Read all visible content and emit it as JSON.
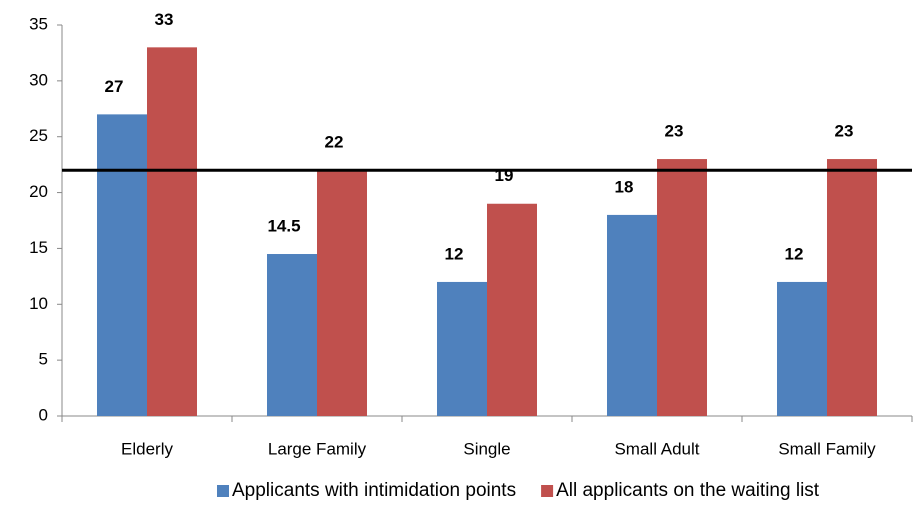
{
  "chart_data": {
    "type": "bar",
    "categories": [
      "Elderly",
      "Large Family",
      "Single",
      "Small Adult",
      "Small Family"
    ],
    "series": [
      {
        "name": "Applicants with intimidation points",
        "color": "#4f81bd",
        "values": [
          27,
          14.5,
          12,
          18,
          12
        ]
      },
      {
        "name": "All applicants on the waiting list",
        "color": "#c0504d",
        "values": [
          33,
          22,
          19,
          23,
          23
        ]
      }
    ],
    "reference_line": 22,
    "ylim": [
      0,
      35
    ],
    "yticks": [
      0,
      5,
      10,
      15,
      20,
      25,
      30,
      35
    ],
    "legend": "bottom"
  }
}
